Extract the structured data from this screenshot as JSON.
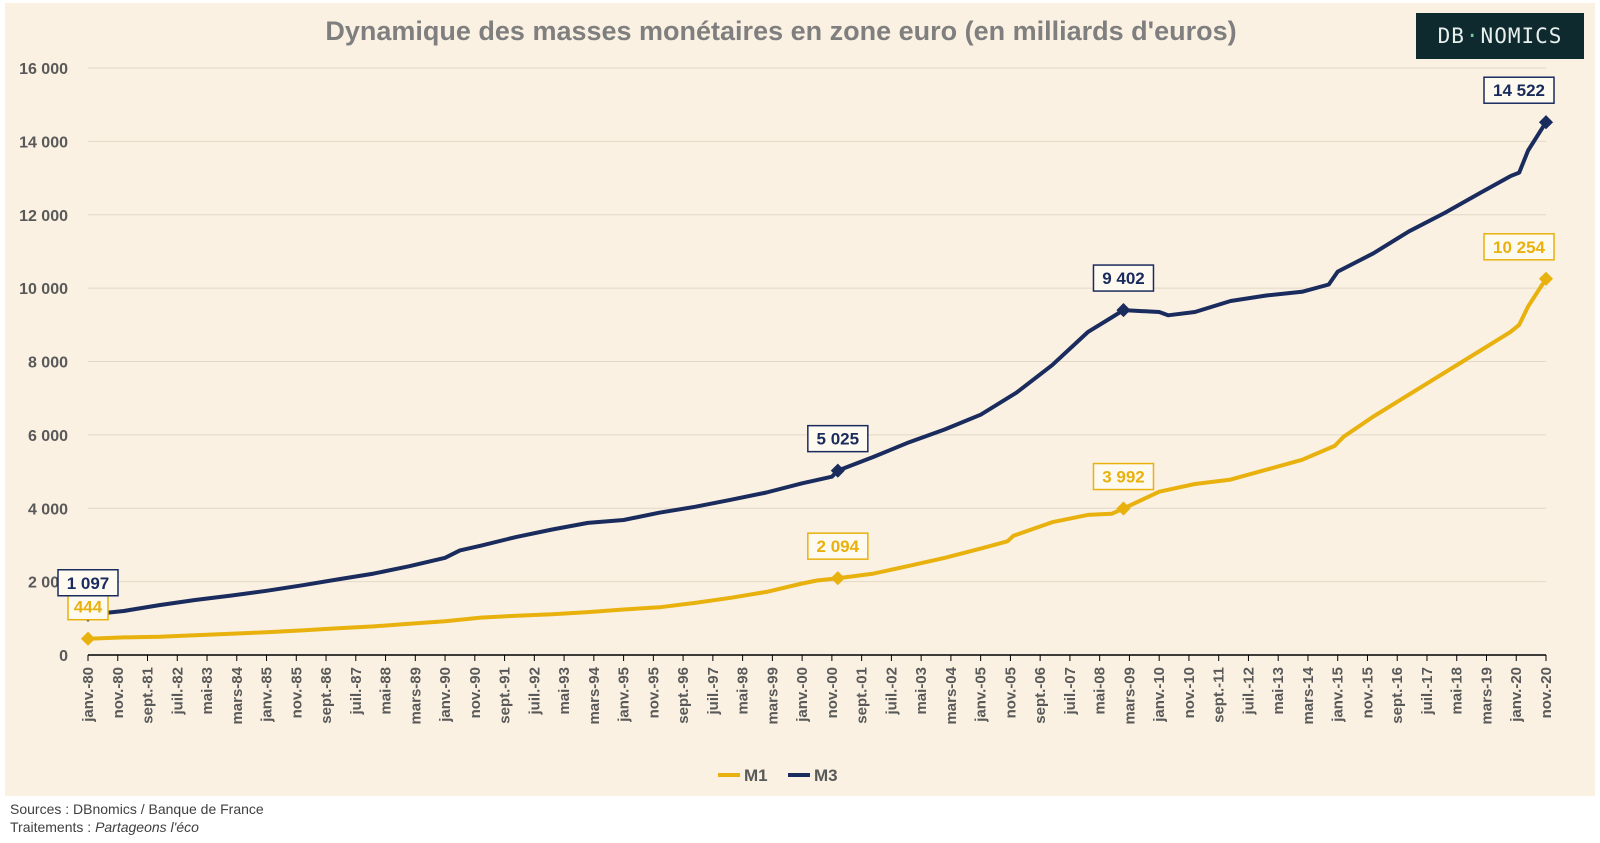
{
  "chart_data": {
    "type": "line",
    "title": "Dynamique des masses monétaires en zone euro (en milliards d'euros)",
    "ylim": [
      0,
      16000
    ],
    "yticks": [
      0,
      2000,
      4000,
      6000,
      8000,
      10000,
      12000,
      14000,
      16000
    ],
    "ytick_labels": [
      "0",
      "2 000",
      "4 000",
      "6 000",
      "8 000",
      "10 000",
      "12 000",
      "14 000",
      "16 000"
    ],
    "grid": true,
    "legend_position": "bottom",
    "xtick_labels": [
      "janv.-80",
      "nov.-80",
      "sept.-81",
      "juil.-82",
      "mai-83",
      "mars-84",
      "janv.-85",
      "nov.-85",
      "sept.-86",
      "juil.-87",
      "mai-88",
      "mars-89",
      "janv.-90",
      "nov.-90",
      "sept.-91",
      "juil.-92",
      "mai-93",
      "mars-94",
      "janv.-95",
      "nov.-95",
      "sept.-96",
      "juil.-97",
      "mai-98",
      "mars-99",
      "janv.-00",
      "nov.-00",
      "sept.-01",
      "juil.-02",
      "mai-03",
      "mars-04",
      "janv.-05",
      "nov.-05",
      "sept.-06",
      "juil.-07",
      "mai-08",
      "mars-09",
      "janv.-10",
      "nov.-10",
      "sept.-11",
      "juil.-12",
      "mai-13",
      "mars-14",
      "janv.-15",
      "nov.-15",
      "sept.-16",
      "juil.-17",
      "mai-18",
      "mars-19",
      "janv.-20",
      "nov.-20"
    ],
    "x_range": [
      "1980-01",
      "2020-11"
    ],
    "series": [
      {
        "name": "M1",
        "color": "#e8b10e",
        "points": [
          [
            "1980-01",
            444
          ],
          [
            "1981-01",
            480
          ],
          [
            "1982-01",
            500
          ],
          [
            "1983-01",
            540
          ],
          [
            "1984-01",
            580
          ],
          [
            "1985-01",
            620
          ],
          [
            "1986-01",
            670
          ],
          [
            "1987-01",
            730
          ],
          [
            "1988-01",
            780
          ],
          [
            "1989-01",
            850
          ],
          [
            "1990-01",
            920
          ],
          [
            "1991-01",
            1020
          ],
          [
            "1992-01",
            1070
          ],
          [
            "1993-01",
            1110
          ],
          [
            "1994-01",
            1170
          ],
          [
            "1995-01",
            1240
          ],
          [
            "1996-01",
            1300
          ],
          [
            "1997-01",
            1420
          ],
          [
            "1998-01",
            1560
          ],
          [
            "1999-01",
            1720
          ],
          [
            "2000-01",
            1950
          ],
          [
            "2000-06",
            2030
          ],
          [
            "2001-01",
            2094
          ],
          [
            "2002-01",
            2220
          ],
          [
            "2003-01",
            2430
          ],
          [
            "2004-01",
            2650
          ],
          [
            "2005-01",
            2900
          ],
          [
            "2005-10",
            3100
          ],
          [
            "2005-12",
            3250
          ],
          [
            "2007-01",
            3620
          ],
          [
            "2008-01",
            3820
          ],
          [
            "2008-09",
            3850
          ],
          [
            "2009-01",
            3992
          ],
          [
            "2010-01",
            4450
          ],
          [
            "2011-01",
            4660
          ],
          [
            "2012-01",
            4780
          ],
          [
            "2013-01",
            5050
          ],
          [
            "2014-01",
            5320
          ],
          [
            "2014-12",
            5700
          ],
          [
            "2015-03",
            5950
          ],
          [
            "2016-01",
            6500
          ],
          [
            "2017-01",
            7100
          ],
          [
            "2018-01",
            7700
          ],
          [
            "2019-01",
            8300
          ],
          [
            "2019-11",
            8800
          ],
          [
            "2020-02",
            9000
          ],
          [
            "2020-05",
            9500
          ],
          [
            "2020-11",
            10254
          ]
        ],
        "labels": [
          {
            "x": "1980-01",
            "value": "444"
          },
          {
            "x": "2001-01",
            "value": "2 094"
          },
          {
            "x": "2009-01",
            "value": "3 992"
          },
          {
            "x": "2020-11",
            "value": "10 254"
          }
        ]
      },
      {
        "name": "M3",
        "color": "#1a2b5e",
        "points": [
          [
            "1980-01",
            1097
          ],
          [
            "1981-01",
            1200
          ],
          [
            "1982-01",
            1360
          ],
          [
            "1983-01",
            1500
          ],
          [
            "1984-01",
            1620
          ],
          [
            "1985-01",
            1750
          ],
          [
            "1986-01",
            1900
          ],
          [
            "1987-01",
            2060
          ],
          [
            "1988-01",
            2220
          ],
          [
            "1989-01",
            2420
          ],
          [
            "1990-01",
            2650
          ],
          [
            "1990-06",
            2850
          ],
          [
            "1991-01",
            2980
          ],
          [
            "1992-01",
            3220
          ],
          [
            "1993-01",
            3420
          ],
          [
            "1994-01",
            3600
          ],
          [
            "1995-01",
            3680
          ],
          [
            "1996-01",
            3880
          ],
          [
            "1997-01",
            4040
          ],
          [
            "1998-01",
            4230
          ],
          [
            "1999-01",
            4430
          ],
          [
            "2000-01",
            4680
          ],
          [
            "2000-11",
            4860
          ],
          [
            "2001-01",
            5025
          ],
          [
            "2002-01",
            5400
          ],
          [
            "2003-01",
            5800
          ],
          [
            "2004-01",
            6150
          ],
          [
            "2005-01",
            6550
          ],
          [
            "2006-01",
            7150
          ],
          [
            "2007-01",
            7900
          ],
          [
            "2008-01",
            8800
          ],
          [
            "2008-09",
            9200
          ],
          [
            "2009-01",
            9402
          ],
          [
            "2010-01",
            9350
          ],
          [
            "2010-04",
            9260
          ],
          [
            "2011-01",
            9350
          ],
          [
            "2012-01",
            9650
          ],
          [
            "2013-01",
            9800
          ],
          [
            "2014-01",
            9900
          ],
          [
            "2014-10",
            10100
          ],
          [
            "2015-01",
            10450
          ],
          [
            "2016-01",
            10950
          ],
          [
            "2017-01",
            11550
          ],
          [
            "2018-01",
            12050
          ],
          [
            "2019-01",
            12600
          ],
          [
            "2019-11",
            13050
          ],
          [
            "2020-02",
            13150
          ],
          [
            "2020-05",
            13750
          ],
          [
            "2020-11",
            14522
          ]
        ],
        "labels": [
          {
            "x": "1980-01",
            "value": "1 097"
          },
          {
            "x": "2001-01",
            "value": "5 025"
          },
          {
            "x": "2009-01",
            "value": "9 402"
          },
          {
            "x": "2020-11",
            "value": "14 522"
          }
        ]
      }
    ]
  },
  "logo": {
    "left": "DB",
    "dot": "·",
    "right": "NOMICS"
  },
  "footer": {
    "sources_label": "Sources : ",
    "sources_value": "DBnomics / Banque de France",
    "processing_label": "Traitements : ",
    "processing_value": "Partageons l'éco"
  }
}
